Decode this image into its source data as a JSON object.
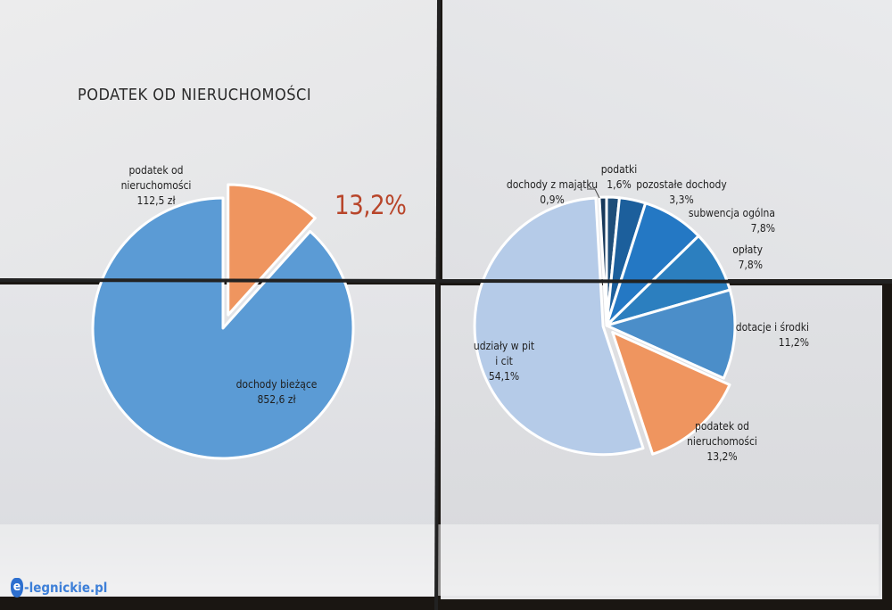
{
  "title": "PODATEK OD NIERUCHOMOŚCI",
  "highlight_percent": "13,2%",
  "watermark": {
    "icon": "e",
    "text": "-legnickie.pl"
  },
  "colors": {
    "highlight": "#b8452a",
    "left_main": "#5b9bd5",
    "left_slice": "#ef955f"
  },
  "chart_data": [
    {
      "type": "pie",
      "slices": [
        {
          "name": "podatek od nieruchomości",
          "value": 112.5,
          "display": "112,5 zł",
          "color": "#ef955f"
        },
        {
          "name": "dochody bieżące",
          "value": 852.6,
          "display": "852,6 zł",
          "color": "#5b9bd5"
        }
      ]
    },
    {
      "type": "pie",
      "slices": [
        {
          "name": "podatki",
          "value": 1.6,
          "display": "1,6%",
          "color": "#1f4e79"
        },
        {
          "name": "pozostałe dochody",
          "value": 3.3,
          "display": "3,3%",
          "color": "#1c5f9c"
        },
        {
          "name": "subwencja ogólna",
          "value": 7.8,
          "display": "7,8%",
          "color": "#2478c4"
        },
        {
          "name": "opłaty",
          "value": 7.8,
          "display": "7,8%",
          "color": "#2c7fbf"
        },
        {
          "name": "dotacje i środki",
          "value": 11.2,
          "display": "11,2%",
          "color": "#4b8ec9"
        },
        {
          "name": "podatek od nieruchomości",
          "value": 13.2,
          "display": "13,2%",
          "color": "#ef955f"
        },
        {
          "name": "udziały w pit i cit",
          "value": 54.1,
          "display": "54,1%",
          "color": "#b5cbe8"
        },
        {
          "name": "dochody z majątku",
          "value": 0.9,
          "display": "0,9%",
          "color": "#17385a"
        }
      ]
    }
  ]
}
